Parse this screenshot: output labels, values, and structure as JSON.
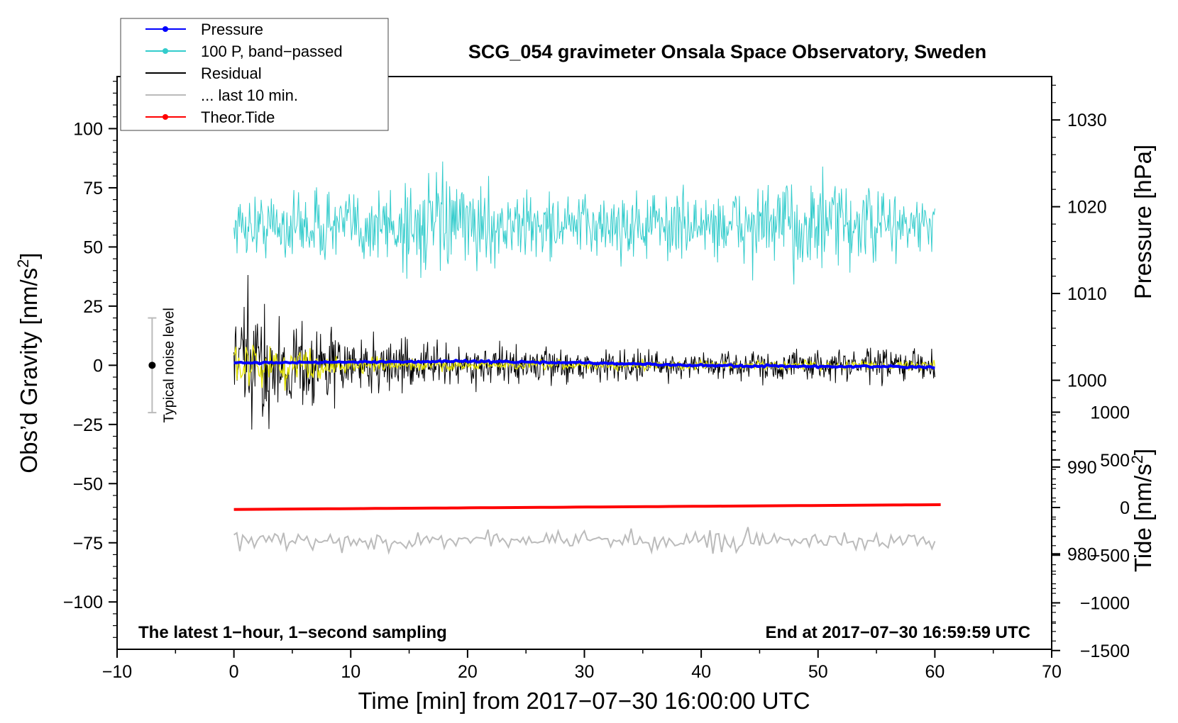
{
  "chart_data": {
    "type": "line",
    "title": "SCG_054 gravimeter Onsala Space Observatory, Sweden",
    "xlabel": "Time [min] from 2017−07−30 16:00:00 UTC",
    "ylabel_left": "Obs’d Gravity [nm/s",
    "ylabel_left_sup": "2",
    "ylabel_left_end": "]",
    "ylabel_right_top": "Pressure [hPa]",
    "ylabel_right_bottom": "Tide [nm/s",
    "ylabel_right_bottom_sup": "2",
    "ylabel_right_bottom_end": "]",
    "xlim": [
      -10,
      70
    ],
    "ylim": [
      -120,
      122
    ],
    "pressure_lim": [
      969,
      1035
    ],
    "tide_lim": [
      -1500,
      1500
    ],
    "x_ticks": [
      {
        "v": -10,
        "t": "−10"
      },
      {
        "v": 0,
        "t": "0"
      },
      {
        "v": 10,
        "t": "10"
      },
      {
        "v": 20,
        "t": "20"
      },
      {
        "v": 30,
        "t": "30"
      },
      {
        "v": 40,
        "t": "40"
      },
      {
        "v": 50,
        "t": "50"
      },
      {
        "v": 60,
        "t": "60"
      },
      {
        "v": 70,
        "t": "70"
      }
    ],
    "y_ticks": [
      {
        "v": 100,
        "t": "100"
      },
      {
        "v": 75,
        "t": "75"
      },
      {
        "v": 50,
        "t": "50"
      },
      {
        "v": 25,
        "t": "25"
      },
      {
        "v": 0,
        "t": "0"
      },
      {
        "v": -25,
        "t": "−25"
      },
      {
        "v": -50,
        "t": "−50"
      },
      {
        "v": -75,
        "t": "−75"
      },
      {
        "v": -100,
        "t": "−100"
      }
    ],
    "pressure_ticks": [
      {
        "v": 1030,
        "t": "1030"
      },
      {
        "v": 1020,
        "t": "1020"
      },
      {
        "v": 1010,
        "t": "1010"
      },
      {
        "v": 1000,
        "t": "1000"
      },
      {
        "v": 990,
        "t": "990"
      },
      {
        "v": 980,
        "t": "980"
      }
    ],
    "tide_ticks": [
      {
        "v": 1000,
        "t": "1000"
      },
      {
        "v": 500,
        "t": "500"
      },
      {
        "v": 0,
        "t": "0"
      },
      {
        "v": -500,
        "t": "−500"
      },
      {
        "v": -1000,
        "t": "−1000"
      },
      {
        "v": -1500,
        "t": "−1500"
      }
    ],
    "series": [
      {
        "name": "Pressure",
        "color": "#0000ff",
        "axis": "pressure",
        "x": [
          0,
          10,
          20,
          30,
          40,
          50,
          60
        ],
        "values": [
          1002.0,
          1002.1,
          1002.2,
          1002.0,
          1001.7,
          1001.6,
          1001.5
        ]
      },
      {
        "name": "100 P, band−passed",
        "color": "#33cccc",
        "axis": "gravity",
        "x": [
          0,
          5,
          10,
          15,
          20,
          25,
          30,
          35,
          40,
          45,
          50,
          55,
          60
        ],
        "amplitude": [
          8,
          11,
          10,
          16,
          12,
          10,
          9,
          11,
          9,
          12,
          15,
          11,
          8
        ],
        "offset": 59
      },
      {
        "name": "Residual",
        "color": "#000000",
        "axis": "gravity",
        "x": [
          0,
          1,
          2,
          5,
          10,
          15,
          20,
          30,
          40,
          50,
          60
        ],
        "amplitude": [
          18,
          22,
          17,
          14,
          9,
          7,
          5.5,
          4.5,
          4,
          4.5,
          5
        ]
      },
      {
        "name": "... last 10 min.",
        "color": "#bbbbbb",
        "axis": "gravity",
        "x": [
          0,
          60
        ],
        "amplitude": [
          3,
          3
        ],
        "offset": -74
      },
      {
        "name": "Theor.Tide",
        "color": "#ff0000",
        "axis": "tide",
        "x": [
          0,
          60.5
        ],
        "values": [
          -20,
          30
        ]
      },
      {
        "name": "",
        "color": "#e5e500",
        "axis": "gravity",
        "x": [
          0,
          2,
          5,
          10,
          20,
          60
        ],
        "amplitude": [
          7,
          6,
          5,
          2.5,
          1.5,
          1.2
        ]
      }
    ],
    "noise_bar": {
      "label": "Typical noise level",
      "x": -7,
      "center": 0,
      "low": -20,
      "high": 20
    },
    "bottom_left_note": "The latest 1−hour, 1−second sampling",
    "bottom_right_note": "End at 2017−07−30 16:59:59 UTC",
    "legend": [
      {
        "label": "Pressure",
        "color": "#0000ff",
        "marker": true
      },
      {
        "label": "100 P, band−passed",
        "color": "#33cccc",
        "marker": true
      },
      {
        "label": "Residual",
        "color": "#000000",
        "marker": false
      },
      {
        "label": "... last 10 min.",
        "color": "#bbbbbb",
        "marker": false
      },
      {
        "label": "Theor.Tide",
        "color": "#ff0000",
        "marker": true
      }
    ]
  }
}
